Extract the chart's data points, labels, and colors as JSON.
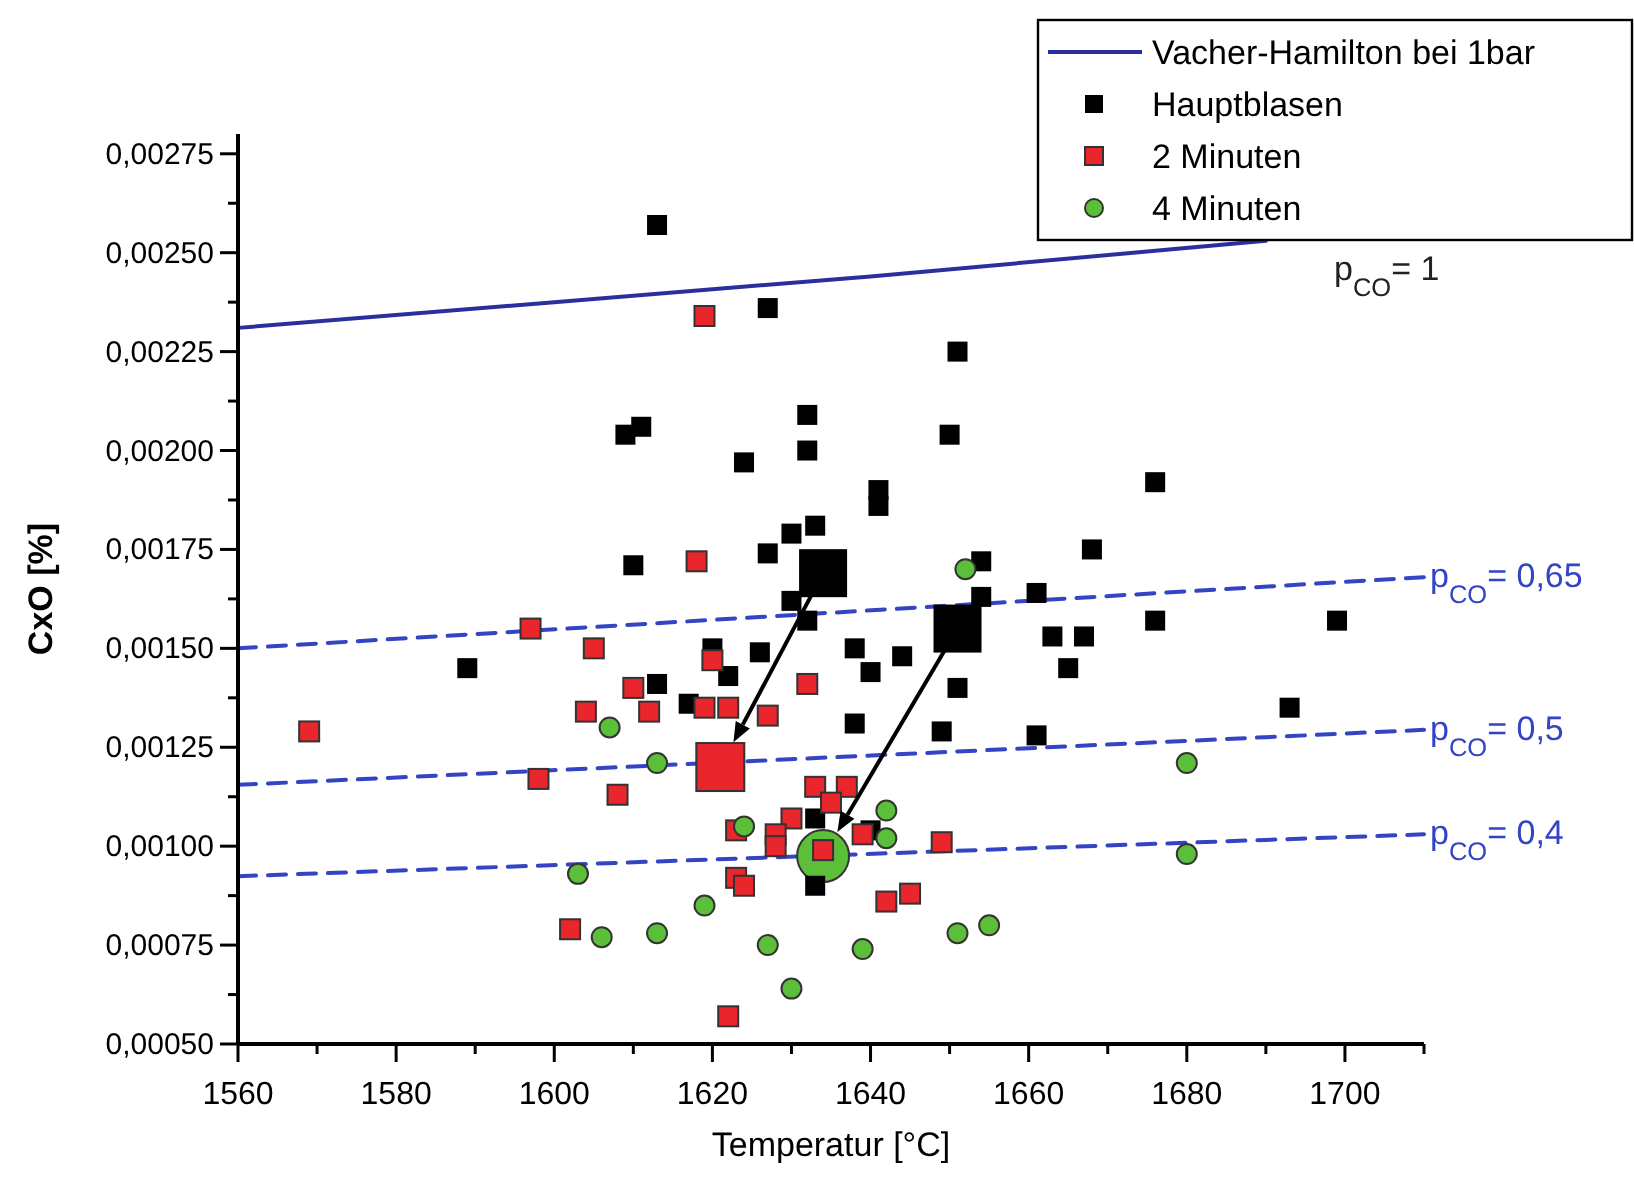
{
  "chart_data": {
    "type": "scatter",
    "xlabel": "Temperatur [°C]",
    "ylabel": "CxO [%]",
    "xlim": [
      1560,
      1710
    ],
    "xticks": [
      1560,
      {
        "value": 1570,
        "label": null
      },
      1580,
      {
        "value": 1590,
        "label": null
      },
      1600,
      {
        "value": 1610,
        "label": null
      },
      1620,
      {
        "value": 1630,
        "label": null
      },
      1640,
      {
        "value": 1650,
        "label": null
      },
      1660,
      {
        "value": 1670,
        "label": null
      },
      1680,
      {
        "value": 1690,
        "label": null
      },
      1700,
      {
        "value": 1710,
        "label": null
      }
    ],
    "ylim": [
      0.0005,
      0.0028
    ],
    "yticks": [
      {
        "value": 0.0005,
        "label": "0,00050"
      },
      {
        "value": 0.000625,
        "label": null
      },
      {
        "value": 0.00075,
        "label": "0,00075"
      },
      {
        "value": 0.000875,
        "label": null
      },
      {
        "value": 0.001,
        "label": "0,00100"
      },
      {
        "value": 0.001125,
        "label": null
      },
      {
        "value": 0.00125,
        "label": "0,00125"
      },
      {
        "value": 0.001375,
        "label": null
      },
      {
        "value": 0.0015,
        "label": "0,00150"
      },
      {
        "value": 0.001625,
        "label": null
      },
      {
        "value": 0.00175,
        "label": "0,00175"
      },
      {
        "value": 0.001875,
        "label": null
      },
      {
        "value": 0.002,
        "label": "0,00200"
      },
      {
        "value": 0.002125,
        "label": null
      },
      {
        "value": 0.00225,
        "label": "0,00225"
      },
      {
        "value": 0.002375,
        "label": null
      },
      {
        "value": 0.0025,
        "label": "0,00250"
      },
      {
        "value": 0.002625,
        "label": null
      },
      {
        "value": 0.00275,
        "label": "0,00275"
      }
    ],
    "grid": false,
    "legend": "top right",
    "series": [
      {
        "name": "Vacher-Hamilton bei 1bar",
        "type": "line",
        "line_style": "solid",
        "color": "#2b2f9e",
        "x": [
          1560,
          1600,
          1640,
          1690
        ],
        "values": [
          0.00231,
          0.002375,
          0.00244,
          0.00253
        ]
      },
      {
        "name": "p$_{CO}$= 0,65",
        "type": "line",
        "line_style": "dashed",
        "color": "#3344c4",
        "x": [
          1560,
          1710
        ],
        "values": [
          0.0015,
          0.00168
        ]
      },
      {
        "name": "p$_{CO}$= 0,5",
        "type": "line",
        "line_style": "dashed",
        "color": "#3344c4",
        "x": [
          1560,
          1710
        ],
        "values": [
          0.001155,
          0.001294
        ]
      },
      {
        "name": "p$_{CO}$= 0,4",
        "type": "line",
        "line_style": "dashed",
        "color": "#3344c4",
        "x": [
          1560,
          1710
        ],
        "values": [
          0.000924,
          0.00103
        ]
      },
      {
        "name": "Hauptblasen",
        "marker": "square",
        "color": "#000000",
        "x": [
          1613,
          1627,
          1609,
          1611,
          1632,
          1632,
          1624,
          1630,
          1633,
          1627,
          1610,
          1630,
          1632,
          1589,
          1620,
          1622,
          1626,
          1613,
          1617,
          1633,
          1633,
          1640,
          1640,
          1644,
          1665,
          1651,
          1638,
          1649,
          1661,
          1693,
          1651,
          1650,
          1641,
          1641,
          1676,
          1668,
          1654,
          1654,
          1661,
          1676,
          1699,
          1663,
          1667,
          1638
        ],
        "values": [
          0.00257,
          0.00236,
          0.00204,
          0.00206,
          0.00209,
          0.002,
          0.00197,
          0.00179,
          0.00181,
          0.00174,
          0.00171,
          0.00162,
          0.00157,
          0.00145,
          0.0015,
          0.00143,
          0.00149,
          0.00141,
          0.00136,
          0.00107,
          0.0009,
          0.00104,
          0.00144,
          0.00148,
          0.00145,
          0.0014,
          0.00131,
          0.00129,
          0.00128,
          0.00135,
          0.00225,
          0.00204,
          0.0019,
          0.00186,
          0.00192,
          0.00175,
          0.00172,
          0.00163,
          0.00164,
          0.00157,
          0.00157,
          0.00153,
          0.00153,
          0.0015
        ]
      },
      {
        "name": "2 Minuten",
        "marker": "square",
        "color": "#e8262b",
        "x": [
          1619,
          1618,
          1597,
          1605,
          1620,
          1632,
          1610,
          1619,
          1622,
          1604,
          1612,
          1627,
          1569,
          1598,
          1608,
          1633,
          1630,
          1623,
          1628,
          1628,
          1623,
          1624,
          1602,
          1622,
          1637,
          1635,
          1639,
          1649,
          1634,
          1642,
          1645
        ],
        "values": [
          0.00234,
          0.00172,
          0.00155,
          0.0015,
          0.00147,
          0.00141,
          0.0014,
          0.00135,
          0.00135,
          0.00134,
          0.00134,
          0.00133,
          0.00129,
          0.00117,
          0.00113,
          0.00115,
          0.00107,
          0.00104,
          0.00103,
          0.001,
          0.00092,
          0.0009,
          0.00079,
          0.00057,
          0.00115,
          0.00111,
          0.00103,
          0.00101,
          0.00099,
          0.00086,
          0.00088
        ]
      },
      {
        "name": "4 Minuten",
        "marker": "circle",
        "color": "#5cbf3a",
        "x": [
          1607,
          1613,
          1624,
          1603,
          1619,
          1606,
          1613,
          1627,
          1630,
          1642,
          1642,
          1639,
          1651,
          1655,
          1680,
          1680,
          1652
        ],
        "values": [
          0.0013,
          0.00121,
          0.00105,
          0.00093,
          0.00085,
          0.00077,
          0.00078,
          0.00075,
          0.00064,
          0.00109,
          0.00102,
          0.00074,
          0.00078,
          0.0008,
          0.00121,
          0.00098,
          0.0017
        ]
      },
      {
        "marker": "square",
        "color": "#000000",
        "x": [
          1634,
          1651
        ],
        "values": [
          0.00169,
          0.00155
        ]
      },
      {
        "marker": "square",
        "color": "#e8262b",
        "x": [
          1621
        ],
        "values": [
          0.0012
        ]
      },
      {
        "marker": "circle",
        "color": "#5cbf3a",
        "x": [
          1634
        ],
        "values": [
          0.000975
        ]
      }
    ],
    "annotations": [
      "p$_{CO}$= 1"
    ]
  }
}
